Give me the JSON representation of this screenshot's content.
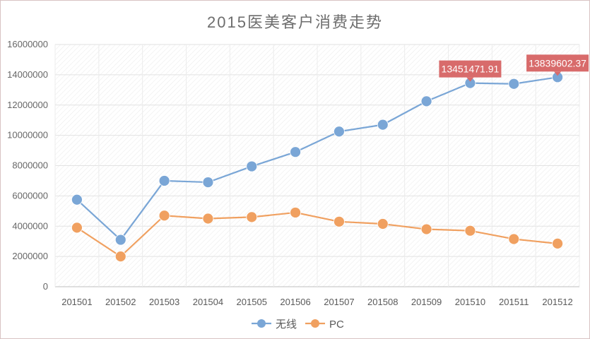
{
  "chart_data": {
    "type": "line",
    "title": "2015医美客户消费走势",
    "categories": [
      "201501",
      "201502",
      "201503",
      "201504",
      "201505",
      "201506",
      "201507",
      "201508",
      "201509",
      "201510",
      "201511",
      "201512"
    ],
    "ylim": [
      0,
      16000000
    ],
    "yticks": [
      "0",
      "2000000",
      "4000000",
      "6000000",
      "8000000",
      "10000000",
      "12000000",
      "14000000",
      "16000000"
    ],
    "grid": true,
    "legend_position": "bottom",
    "series": [
      {
        "name": "无线",
        "color": "#7aa6d6",
        "values": [
          5750000,
          3100000,
          7000000,
          6900000,
          7950000,
          8900000,
          10250000,
          10700000,
          12250000,
          13451471.91,
          13400000,
          13839602.37
        ]
      },
      {
        "name": "PC",
        "color": "#f0a060",
        "values": [
          3900000,
          2000000,
          4700000,
          4500000,
          4600000,
          4900000,
          4300000,
          4150000,
          3800000,
          3700000,
          3150000,
          2850000
        ]
      }
    ],
    "annotations": [
      {
        "series": 0,
        "index": 9,
        "text": "13451471.91"
      },
      {
        "series": 0,
        "index": 11,
        "text": "13839602.37"
      }
    ]
  }
}
